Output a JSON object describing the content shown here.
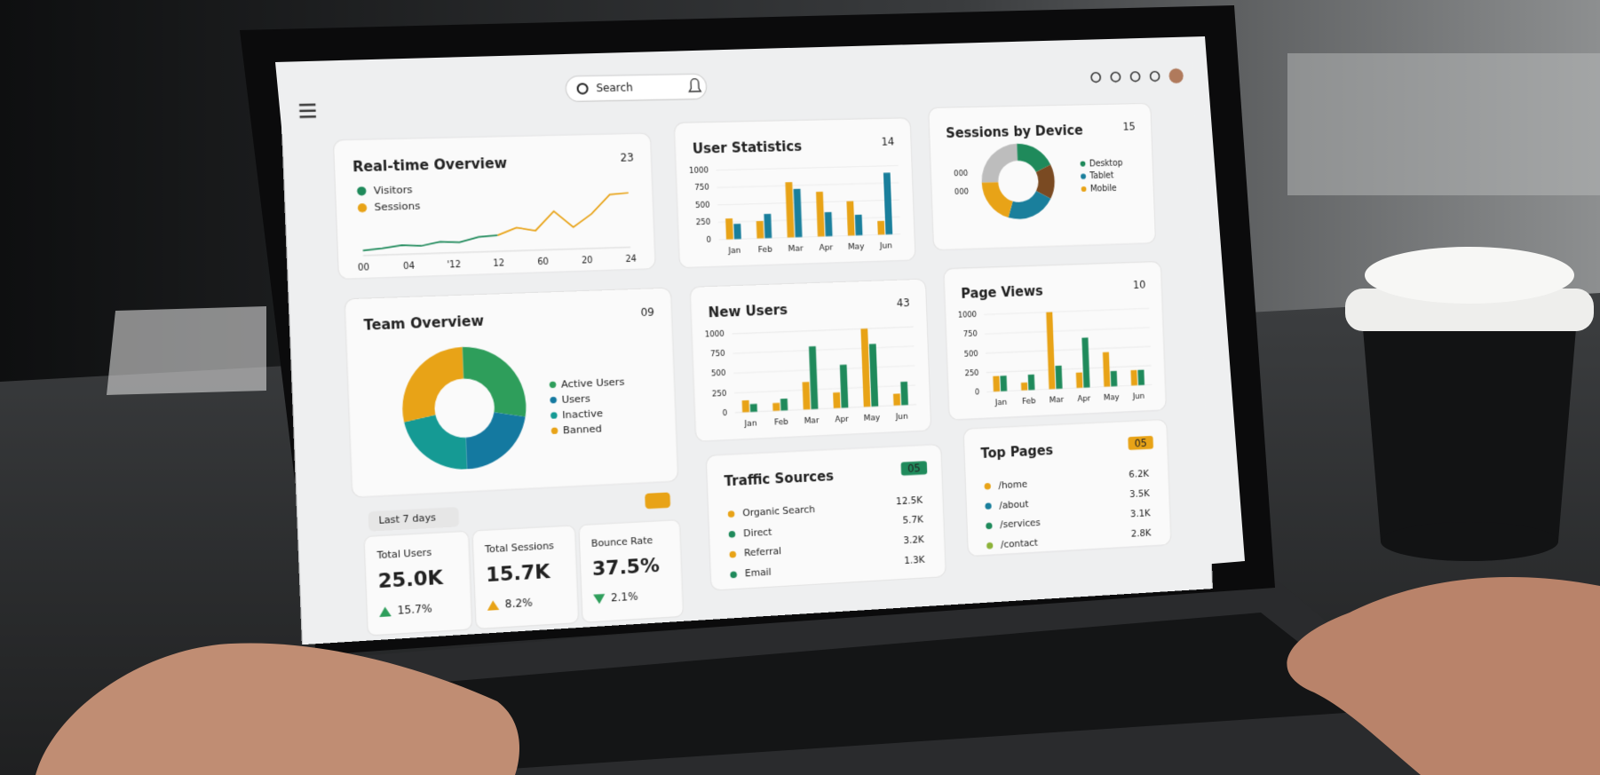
{
  "header": {
    "search": "Search"
  },
  "realtime": {
    "title": "Real-time Overview",
    "badge": "23",
    "ylim": [
      0,
      100
    ],
    "x_labels": [
      "00",
      "04",
      "'12",
      "12",
      "60",
      "20",
      "24"
    ],
    "series": [
      {
        "name": "Visitors",
        "color": "#1f8a5b",
        "values": [
          5,
          8,
          12,
          10,
          16,
          14,
          22,
          24,
          null,
          null,
          null,
          null,
          null,
          null,
          null
        ]
      },
      {
        "name": "Sessions",
        "color": "#e8a317",
        "values": [
          null,
          null,
          null,
          null,
          null,
          null,
          null,
          24,
          36,
          30,
          62,
          34,
          56,
          88,
          90
        ]
      }
    ]
  },
  "user_stats": {
    "title": "User Statistics",
    "badge": "14",
    "ylim": [
      0,
      1000
    ],
    "yticks": [
      0,
      250,
      500,
      750,
      1000
    ],
    "categories": [
      "Jan",
      "Feb",
      "Mar",
      "Apr",
      "May",
      "Jun"
    ],
    "series": [
      {
        "color": "#e8a317",
        "values": [
          300,
          250,
          800,
          650,
          500,
          200
        ]
      },
      {
        "color": "#1a7f9c",
        "values": [
          220,
          350,
          700,
          350,
          300,
          900
        ]
      }
    ]
  },
  "devices": {
    "title": "Sessions by Device",
    "badge": "15",
    "side_labels": [
      "000",
      "000"
    ],
    "segments": [
      {
        "name": "Desktop",
        "color": "#1f8a5b",
        "value": 18
      },
      {
        "color": "#7a4a22",
        "value": 15
      },
      {
        "name": "Tablet",
        "color": "#1a7f9c",
        "value": 22
      },
      {
        "name": "Mobile",
        "color": "#e8a317",
        "value": 20
      },
      {
        "color": "#bdbdbd",
        "value": 25
      }
    ]
  },
  "team": {
    "title": "Team Overview",
    "badge": "09",
    "segments": [
      {
        "name": "Active Users",
        "color": "#2e9e5b",
        "value": 28
      },
      {
        "name": "Users",
        "color": "#1479a0",
        "value": 22
      },
      {
        "name": "Inactive",
        "color": "#159a94",
        "value": 22
      },
      {
        "name": "Banned",
        "color": "#e8a317",
        "value": 28
      }
    ]
  },
  "new_users": {
    "title": "New Users",
    "badge": "43",
    "ylim": [
      0,
      1000
    ],
    "yticks": [
      0,
      250,
      500,
      750,
      1000
    ],
    "categories": [
      "Jan",
      "Feb",
      "Mar",
      "Apr",
      "May",
      "Jun"
    ],
    "series": [
      {
        "color": "#e8a317",
        "values": [
          150,
          100,
          350,
          200,
          1000,
          150
        ]
      },
      {
        "color": "#1f8a5b",
        "values": [
          100,
          150,
          800,
          550,
          800,
          300
        ]
      }
    ]
  },
  "page_views": {
    "title": "Page Views",
    "badge": "10",
    "ylim": [
      0,
      1000
    ],
    "yticks": [
      0,
      250,
      500,
      750,
      1000
    ],
    "categories": [
      "Jan",
      "Feb",
      "Mar",
      "Apr",
      "May",
      "Jun"
    ],
    "series": [
      {
        "color": "#e8a317",
        "values": [
          200,
          100,
          1000,
          200,
          450,
          200
        ]
      },
      {
        "color": "#1f8a5b",
        "values": [
          200,
          200,
          300,
          650,
          200,
          200
        ]
      }
    ]
  },
  "stats": {
    "filter": "Last 7 days",
    "badge_color": "#e8a317",
    "items": [
      {
        "label": "Total Users",
        "value": "25.0K",
        "change": "15.7%",
        "trend": "up",
        "color": "#2e9e5b"
      },
      {
        "label": "Total Sessions",
        "value": "15.7K",
        "change": "8.2%",
        "trend": "up",
        "color": "#e8a317"
      },
      {
        "label": "Bounce Rate",
        "value": "37.5%",
        "change": "2.1%",
        "trend": "down",
        "color": "#2e9e5b"
      }
    ]
  },
  "traffic": {
    "title": "Traffic Sources",
    "badge": "05",
    "badge_color": "#1f8a5b",
    "rows": [
      {
        "name": "Organic Search",
        "value": "12.5K",
        "color": "#e8a317"
      },
      {
        "name": "Direct",
        "value": "5.7K",
        "color": "#1f8a5b"
      },
      {
        "name": "Referral",
        "value": "3.2K",
        "color": "#e8a317"
      },
      {
        "name": "Email",
        "value": "1.3K",
        "color": "#1f8a5b"
      }
    ]
  },
  "top_pages": {
    "title": "Top Pages",
    "badge": "05",
    "badge_color": "#e8a317",
    "rows": [
      {
        "name": "/home",
        "value": "6.2K",
        "color": "#e8a317"
      },
      {
        "name": "/about",
        "value": "3.5K",
        "color": "#1a7f9c"
      },
      {
        "name": "/services",
        "value": "3.1K",
        "color": "#1f8a5b"
      },
      {
        "name": "/contact",
        "value": "2.8K",
        "color": "#8db33a"
      }
    ]
  }
}
